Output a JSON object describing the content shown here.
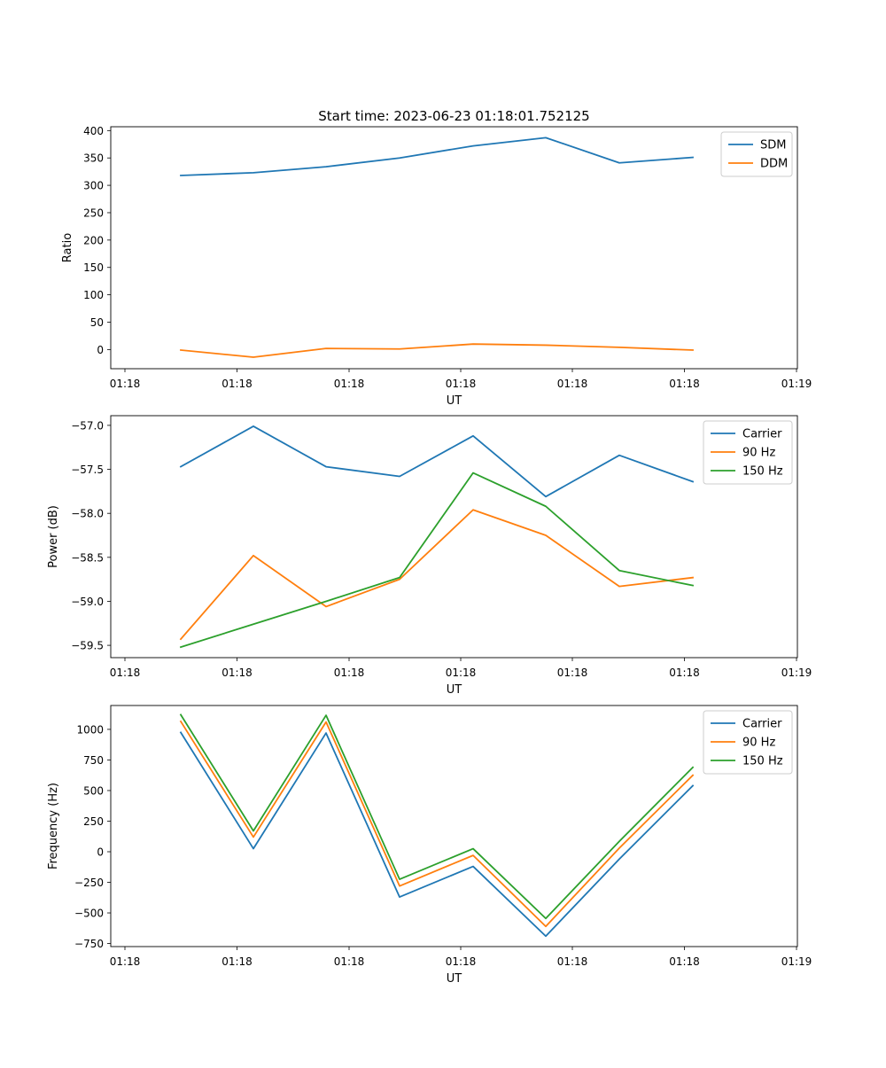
{
  "figure": {
    "title": "Start time: 2023-06-23 01:18:01.752125"
  },
  "chart_data": [
    {
      "type": "line",
      "title": "Start time: 2023-06-23 01:18:01.752125",
      "xlabel": "UT",
      "ylabel": "Ratio",
      "x_tick_labels": [
        "01:18",
        "01:18",
        "01:18",
        "01:18",
        "01:18",
        "01:18",
        "01:19"
      ],
      "ylim": [
        -35,
        407
      ],
      "y_ticks": [
        0,
        50,
        100,
        150,
        200,
        250,
        300,
        350,
        400
      ],
      "y_tick_labels": [
        "0",
        "50",
        "100",
        "150",
        "200",
        "250",
        "300",
        "350",
        "400"
      ],
      "legend_position": "top-right",
      "series": [
        {
          "name": "SDM",
          "color": "#1f77b4",
          "values": [
            318,
            323,
            334,
            350,
            372,
            387,
            341,
            351
          ]
        },
        {
          "name": "DDM",
          "color": "#ff7f0e",
          "values": [
            -1,
            -14,
            2,
            1,
            10,
            8,
            4,
            -1
          ]
        }
      ]
    },
    {
      "type": "line",
      "title": "",
      "xlabel": "UT",
      "ylabel": "Power (dB)",
      "x_tick_labels": [
        "01:18",
        "01:18",
        "01:18",
        "01:18",
        "01:18",
        "01:18",
        "01:19"
      ],
      "ylim": [
        -59.64,
        -56.89
      ],
      "y_ticks": [
        -59.5,
        -59.0,
        -58.5,
        -58.0,
        -57.5,
        -57.0
      ],
      "y_tick_labels": [
        "−59.5",
        "−59.0",
        "−58.5",
        "−58.0",
        "−57.5",
        "−57.0"
      ],
      "legend_position": "top-right",
      "series": [
        {
          "name": "Carrier",
          "color": "#1f77b4",
          "values": [
            -57.47,
            -57.01,
            -57.47,
            -57.58,
            -57.12,
            -57.81,
            -57.34,
            -57.64
          ]
        },
        {
          "name": "90 Hz",
          "color": "#ff7f0e",
          "values": [
            -59.43,
            -58.48,
            -59.06,
            -58.75,
            -57.96,
            -58.25,
            -58.83,
            -58.73
          ]
        },
        {
          "name": "150 Hz",
          "color": "#2ca02c",
          "values": [
            -59.52,
            -59.26,
            -59.0,
            -58.73,
            -57.54,
            -57.92,
            -58.65,
            -58.82
          ]
        }
      ]
    },
    {
      "type": "line",
      "title": "",
      "xlabel": "UT",
      "ylabel": "Frequency (Hz)",
      "x_tick_labels": [
        "01:18",
        "01:18",
        "01:18",
        "01:18",
        "01:18",
        "01:18",
        "01:19"
      ],
      "ylim": [
        -775,
        1195
      ],
      "y_ticks": [
        -750,
        -500,
        -250,
        0,
        250,
        500,
        750,
        1000
      ],
      "y_tick_labels": [
        "−750",
        "−500",
        "−250",
        "0",
        "250",
        "500",
        "750",
        "1000"
      ],
      "legend_position": "top-right",
      "series": [
        {
          "name": "Carrier",
          "color": "#1f77b4",
          "values": [
            975,
            25,
            970,
            -370,
            -120,
            -690,
            -60,
            540
          ]
        },
        {
          "name": "90 Hz",
          "color": "#ff7f0e",
          "values": [
            1065,
            120,
            1060,
            -280,
            -30,
            -610,
            30,
            625
          ]
        },
        {
          "name": "150 Hz",
          "color": "#2ca02c",
          "values": [
            1120,
            170,
            1115,
            -225,
            25,
            -545,
            85,
            690
          ]
        }
      ]
    }
  ]
}
